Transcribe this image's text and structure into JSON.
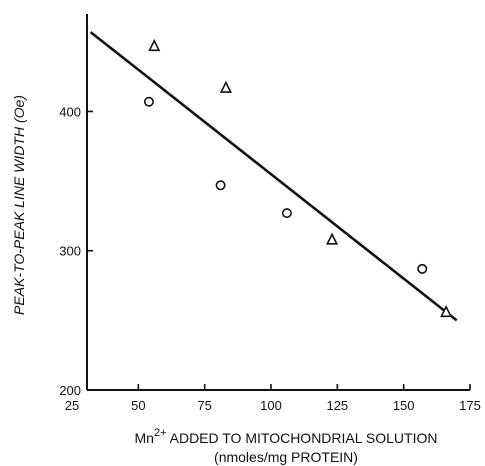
{
  "chart_data": {
    "type": "scatter",
    "xlabel_prefix": "Mn",
    "xlabel_superscript": "2+",
    "xlabel_main": " ADDED TO MITOCHONDRIAL SOLUTION",
    "xlabel_units": "(nmoles/mg PROTEIN)",
    "ylabel": "PEAK-TO-PEAK LINE WIDTH (Oe)",
    "xlim": [
      25,
      175
    ],
    "ylim": [
      200,
      470
    ],
    "x_ticks": [
      25,
      50,
      75,
      100,
      125,
      150,
      175
    ],
    "y_ticks": [
      200,
      300,
      400
    ],
    "grid": false,
    "series": [
      {
        "marker": "circle",
        "points": [
          {
            "x": 54,
            "y": 407
          },
          {
            "x": 81,
            "y": 347
          },
          {
            "x": 106,
            "y": 327
          },
          {
            "x": 157,
            "y": 287
          }
        ]
      },
      {
        "marker": "triangle",
        "points": [
          {
            "x": 56,
            "y": 447
          },
          {
            "x": 83,
            "y": 417
          },
          {
            "x": 123,
            "y": 308
          },
          {
            "x": 166,
            "y": 256
          }
        ]
      }
    ],
    "fit_line": {
      "x": [
        32,
        170
      ],
      "y": [
        457,
        250
      ]
    }
  }
}
